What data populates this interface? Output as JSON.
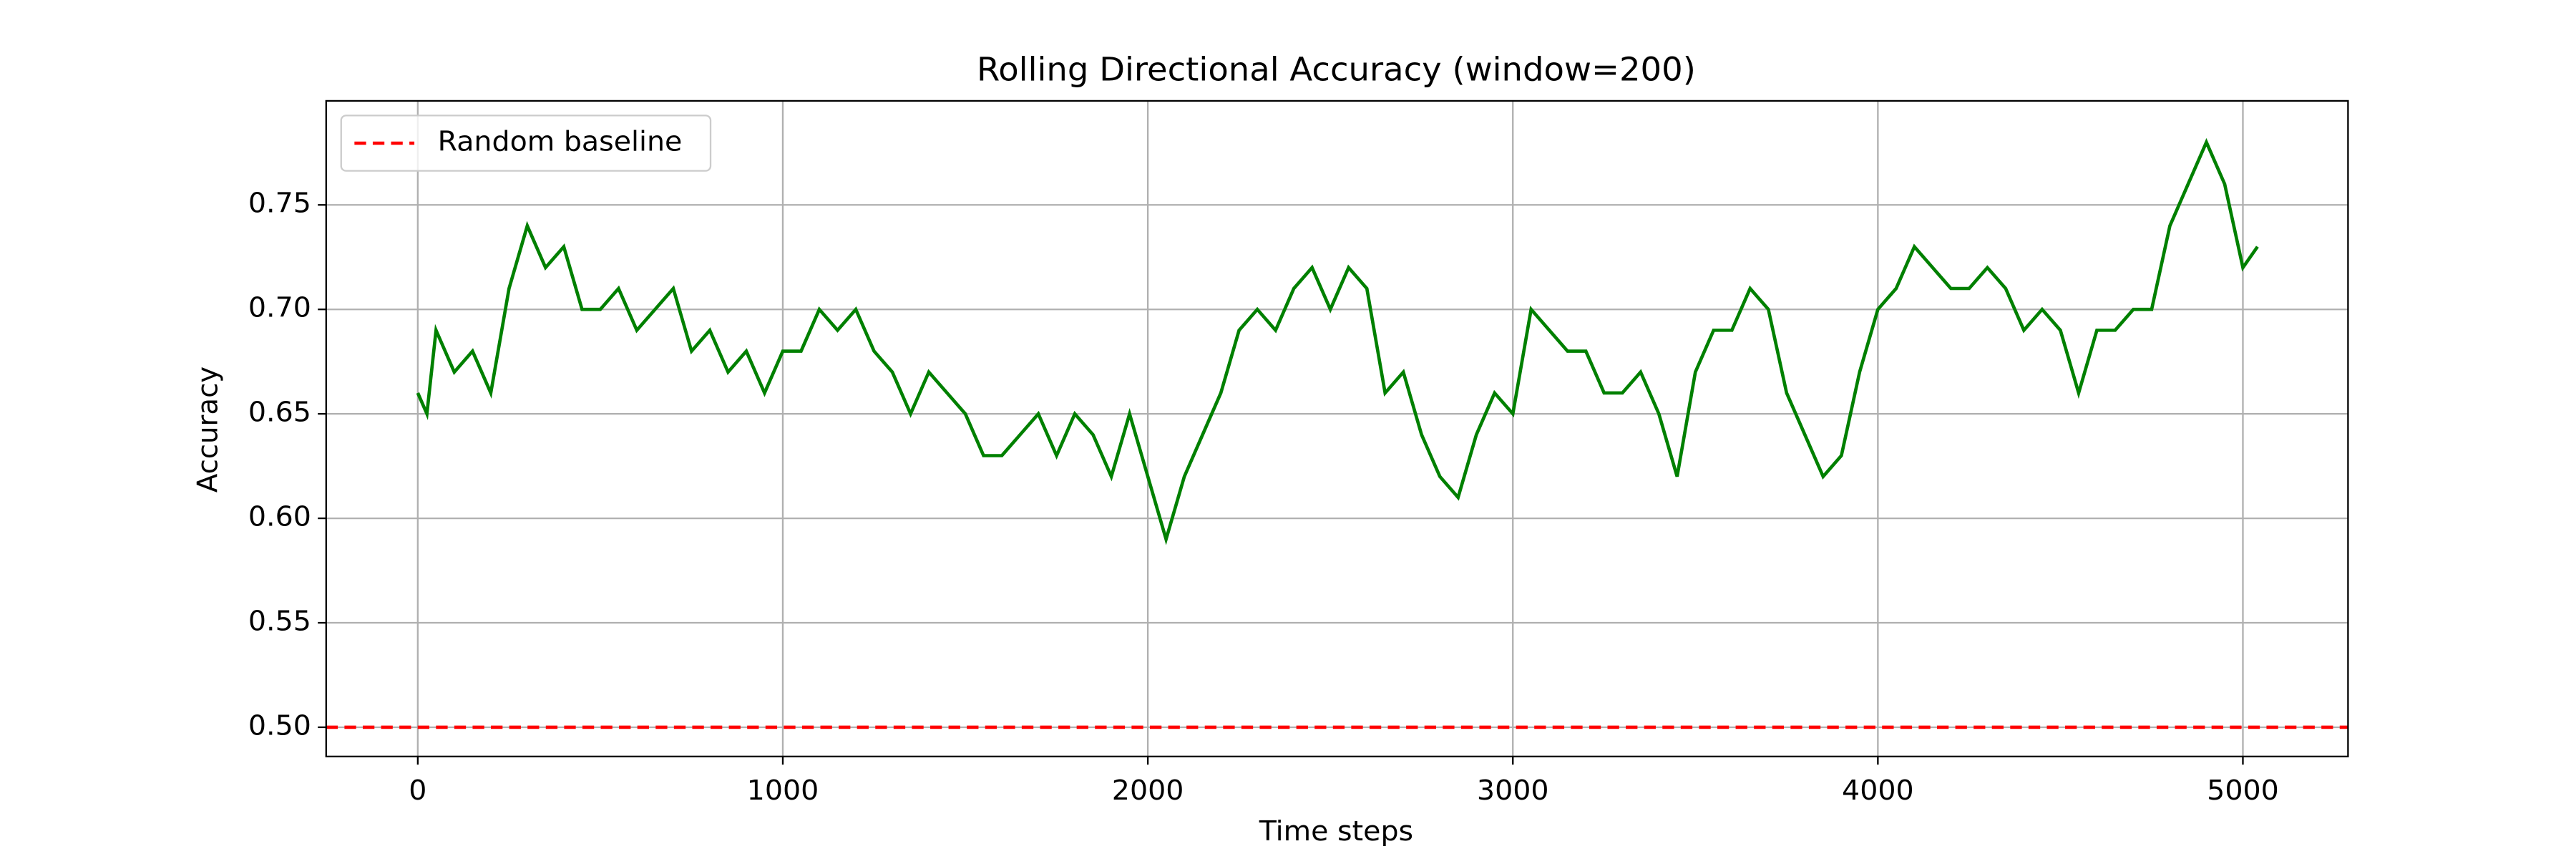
{
  "chart_data": {
    "type": "line",
    "title": "Rolling Directional Accuracy (window=200)",
    "xlabel": "Time steps",
    "ylabel": "Accuracy",
    "x": [
      0,
      25,
      50,
      100,
      150,
      200,
      250,
      300,
      350,
      400,
      450,
      500,
      550,
      600,
      650,
      700,
      750,
      800,
      850,
      900,
      950,
      1000,
      1050,
      1100,
      1150,
      1200,
      1250,
      1300,
      1350,
      1400,
      1450,
      1500,
      1550,
      1600,
      1650,
      1700,
      1750,
      1800,
      1850,
      1900,
      1950,
      2000,
      2050,
      2100,
      2150,
      2200,
      2250,
      2300,
      2350,
      2400,
      2450,
      2500,
      2550,
      2600,
      2650,
      2700,
      2750,
      2800,
      2850,
      2900,
      2950,
      3000,
      3050,
      3100,
      3150,
      3200,
      3250,
      3300,
      3350,
      3400,
      3450,
      3500,
      3550,
      3600,
      3650,
      3700,
      3750,
      3800,
      3850,
      3900,
      3950,
      4000,
      4050,
      4100,
      4150,
      4200,
      4250,
      4300,
      4350,
      4400,
      4450,
      4500,
      4550,
      4600,
      4650,
      4700,
      4750,
      4800,
      4850,
      4900,
      4950,
      5000,
      5040
    ],
    "series": [
      {
        "color": "#008000",
        "values": [
          0.66,
          0.65,
          0.69,
          0.67,
          0.68,
          0.66,
          0.71,
          0.74,
          0.72,
          0.73,
          0.7,
          0.7,
          0.71,
          0.69,
          0.7,
          0.71,
          0.68,
          0.69,
          0.67,
          0.68,
          0.66,
          0.68,
          0.68,
          0.7,
          0.69,
          0.7,
          0.68,
          0.67,
          0.65,
          0.67,
          0.66,
          0.65,
          0.63,
          0.63,
          0.64,
          0.65,
          0.63,
          0.65,
          0.64,
          0.62,
          0.65,
          0.62,
          0.59,
          0.62,
          0.64,
          0.66,
          0.69,
          0.7,
          0.69,
          0.71,
          0.72,
          0.7,
          0.72,
          0.71,
          0.66,
          0.67,
          0.64,
          0.62,
          0.61,
          0.64,
          0.66,
          0.65,
          0.7,
          0.69,
          0.68,
          0.68,
          0.66,
          0.66,
          0.67,
          0.65,
          0.62,
          0.67,
          0.69,
          0.69,
          0.71,
          0.7,
          0.66,
          0.64,
          0.62,
          0.63,
          0.67,
          0.7,
          0.71,
          0.73,
          0.72,
          0.71,
          0.71,
          0.72,
          0.71,
          0.69,
          0.7,
          0.69,
          0.66,
          0.69,
          0.69,
          0.7,
          0.7,
          0.74,
          0.76,
          0.78,
          0.76,
          0.72,
          0.73
        ]
      }
    ],
    "hlines": [
      {
        "name": "Random baseline",
        "y": 0.5,
        "color": "#ff0000",
        "style": "dashed"
      }
    ],
    "xlim": [
      -251,
      5288
    ],
    "ylim": [
      0.486,
      0.7998
    ],
    "xticks": [
      0,
      1000,
      2000,
      3000,
      4000,
      5000
    ],
    "yticks": [
      {
        "value": 0.5,
        "label": "0.50"
      },
      0.55,
      {
        "value": 0.6,
        "label": "0.60"
      },
      0.65,
      {
        "value": 0.7,
        "label": "0.70"
      },
      0.75
    ],
    "grid": true,
    "legend": "upper left"
  }
}
